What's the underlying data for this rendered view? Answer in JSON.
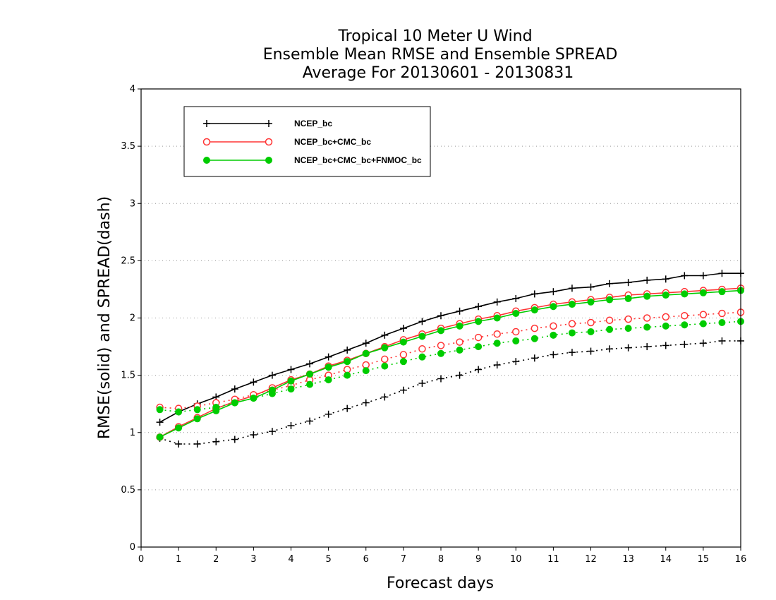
{
  "chart_data": {
    "type": "line",
    "title": [
      "Tropical 10 Meter U Wind",
      "Ensemble Mean RMSE and Ensemble SPREAD",
      "Average For 20130601 - 20130831"
    ],
    "xlabel": "Forecast days",
    "ylabel": "RMSE(solid) and SPREAD(dash)",
    "xlim": [
      0,
      16
    ],
    "ylim": [
      0,
      4
    ],
    "xticks": [
      0,
      1,
      2,
      3,
      4,
      5,
      6,
      7,
      8,
      9,
      10,
      11,
      12,
      13,
      14,
      15,
      16
    ],
    "yticks": [
      0,
      0.5,
      1,
      1.5,
      2,
      2.5,
      3,
      3.5,
      4
    ],
    "ytick_labels": [
      "0",
      "0.5",
      "1",
      "1.5",
      "2",
      "2.5",
      "3",
      "3.5",
      "4"
    ],
    "grid": "horizontal dotted",
    "legend_position": "top-left",
    "x": [
      0.5,
      1,
      1.5,
      2,
      2.5,
      3,
      3.5,
      4,
      4.5,
      5,
      5.5,
      6,
      6.5,
      7,
      7.5,
      8,
      8.5,
      9,
      9.5,
      10,
      10.5,
      11,
      11.5,
      12,
      12.5,
      13,
      13.5,
      14,
      14.5,
      15,
      15.5,
      16
    ],
    "series": [
      {
        "name": "NCEP_bc",
        "color": "#000000",
        "marker": "plus",
        "rmse": [
          1.09,
          1.18,
          1.25,
          1.31,
          1.38,
          1.44,
          1.5,
          1.55,
          1.6,
          1.66,
          1.72,
          1.78,
          1.85,
          1.91,
          1.97,
          2.02,
          2.06,
          2.1,
          2.14,
          2.17,
          2.21,
          2.23,
          2.26,
          2.27,
          2.3,
          2.31,
          2.33,
          2.34,
          2.37,
          2.37,
          2.39,
          2.39
        ],
        "spread": [
          0.95,
          0.9,
          0.9,
          0.92,
          0.94,
          0.98,
          1.01,
          1.06,
          1.1,
          1.16,
          1.21,
          1.26,
          1.31,
          1.37,
          1.43,
          1.47,
          1.5,
          1.55,
          1.59,
          1.62,
          1.65,
          1.68,
          1.7,
          1.71,
          1.73,
          1.74,
          1.75,
          1.76,
          1.77,
          1.78,
          1.8,
          1.8
        ]
      },
      {
        "name": "NCEP_bc+CMC_bc",
        "color": "#ff3333",
        "marker": "open-circle",
        "rmse": [
          0.96,
          1.05,
          1.13,
          1.21,
          1.27,
          1.32,
          1.39,
          1.46,
          1.51,
          1.58,
          1.63,
          1.69,
          1.75,
          1.81,
          1.86,
          1.91,
          1.95,
          1.99,
          2.02,
          2.06,
          2.09,
          2.12,
          2.14,
          2.16,
          2.18,
          2.2,
          2.21,
          2.22,
          2.23,
          2.24,
          2.25,
          2.26
        ],
        "spread": [
          1.22,
          1.21,
          1.23,
          1.26,
          1.29,
          1.33,
          1.37,
          1.41,
          1.46,
          1.5,
          1.55,
          1.59,
          1.64,
          1.68,
          1.73,
          1.76,
          1.79,
          1.83,
          1.86,
          1.88,
          1.91,
          1.93,
          1.95,
          1.96,
          1.98,
          1.99,
          2.0,
          2.01,
          2.02,
          2.03,
          2.04,
          2.05
        ]
      },
      {
        "name": "NCEP_bc+CMC_bc+FNMOC_bc",
        "color": "#00cc00",
        "marker": "filled-circle",
        "rmse": [
          0.96,
          1.04,
          1.12,
          1.19,
          1.26,
          1.3,
          1.37,
          1.45,
          1.51,
          1.57,
          1.62,
          1.69,
          1.74,
          1.79,
          1.84,
          1.89,
          1.93,
          1.97,
          2.0,
          2.04,
          2.07,
          2.1,
          2.12,
          2.14,
          2.16,
          2.17,
          2.19,
          2.2,
          2.21,
          2.22,
          2.23,
          2.24
        ],
        "spread": [
          1.2,
          1.18,
          1.2,
          1.22,
          1.26,
          1.3,
          1.34,
          1.38,
          1.42,
          1.46,
          1.5,
          1.54,
          1.58,
          1.62,
          1.66,
          1.69,
          1.72,
          1.75,
          1.78,
          1.8,
          1.82,
          1.85,
          1.87,
          1.88,
          1.9,
          1.91,
          1.92,
          1.93,
          1.94,
          1.95,
          1.96,
          1.97
        ]
      }
    ]
  }
}
